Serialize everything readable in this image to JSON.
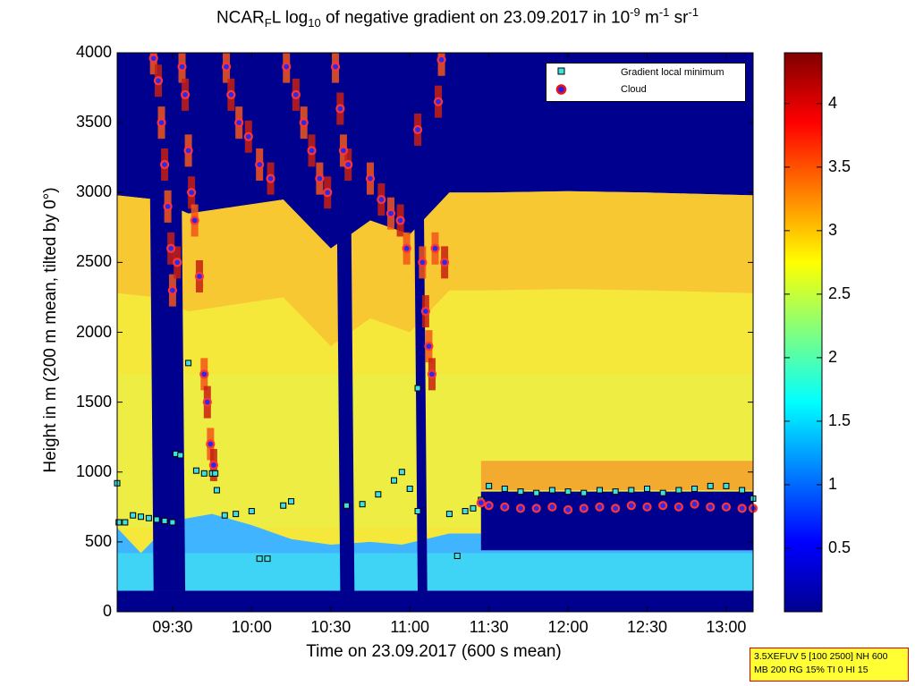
{
  "chart_data": {
    "type": "heatmap",
    "title_parts": {
      "a": "NCAR",
      "a_sub": "F",
      "b": "L log",
      "b_sub": "10",
      "c": " of negative gradient on 23.09.2017 in 10",
      "c_sup": "-9",
      "d": " m",
      "d_sup": "-1",
      "e": " sr",
      "e_sup": "-1"
    },
    "xlabel": "Time on 23.09.2017 (600 s mean)",
    "ylabel": "Height in m (200 m mean, tilted by 0°)",
    "x_ticks": [
      "09:30",
      "10:00",
      "10:30",
      "11:00",
      "11:30",
      "12:00",
      "12:30",
      "13:00"
    ],
    "x_tick_hours": [
      9.5,
      10.0,
      10.5,
      11.0,
      11.5,
      12.0,
      12.5,
      13.0
    ],
    "xlim_hours": [
      9.15,
      13.17
    ],
    "y_ticks": [
      0,
      500,
      1000,
      1500,
      2000,
      2500,
      3000,
      3500,
      4000
    ],
    "ylim": [
      0,
      4000
    ],
    "colorbar": {
      "ticks": [
        0.5,
        1,
        1.5,
        2,
        2.5,
        3,
        3.5,
        4
      ],
      "tick_labels": [
        "0.5",
        "1",
        "1.5",
        "2",
        "2.5",
        "3",
        "3.5",
        "4"
      ],
      "clim": [
        0,
        4.4
      ],
      "colormap": "jet"
    },
    "legend": {
      "placement": "top-right",
      "entries": [
        "Gradient local minimum",
        "Cloud"
      ]
    },
    "layers": {
      "surface_layer_top_m": [
        [
          9.15,
          600
        ],
        [
          9.3,
          420
        ],
        [
          9.5,
          650
        ],
        [
          9.75,
          700
        ],
        [
          10.0,
          620
        ],
        [
          10.25,
          520
        ],
        [
          10.5,
          480
        ],
        [
          10.75,
          500
        ],
        [
          10.95,
          480
        ],
        [
          11.25,
          560
        ],
        [
          11.5,
          560
        ],
        [
          11.75,
          560
        ],
        [
          12.0,
          540
        ],
        [
          12.5,
          540
        ],
        [
          13.0,
          550
        ],
        [
          13.17,
          550
        ]
      ],
      "aerosol_layer_top_m": [
        [
          9.15,
          2980
        ],
        [
          9.4,
          2950
        ],
        [
          9.6,
          2850
        ],
        [
          9.9,
          2900
        ],
        [
          10.2,
          2950
        ],
        [
          10.5,
          2600
        ],
        [
          10.75,
          2800
        ],
        [
          11.0,
          2700
        ],
        [
          11.25,
          3000
        ],
        [
          11.5,
          3000
        ],
        [
          12.0,
          3010
        ],
        [
          12.5,
          3000
        ],
        [
          13.17,
          2980
        ]
      ]
    },
    "clear_gaps_hours": [
      [
        9.35,
        9.55
      ],
      [
        10.53,
        10.62
      ],
      [
        11.02,
        11.08
      ]
    ],
    "gradient_local_minimum_m": [
      [
        9.15,
        920
      ],
      [
        9.16,
        640
      ],
      [
        9.2,
        640
      ],
      [
        9.25,
        690
      ],
      [
        9.3,
        680
      ],
      [
        9.35,
        670
      ],
      [
        9.4,
        660
      ],
      [
        9.45,
        650
      ],
      [
        9.5,
        640
      ],
      [
        9.52,
        1130
      ],
      [
        9.55,
        1120
      ],
      [
        9.6,
        1780
      ],
      [
        9.65,
        1010
      ],
      [
        9.7,
        990
      ],
      [
        9.75,
        990
      ],
      [
        9.77,
        990
      ],
      [
        9.78,
        870
      ],
      [
        9.83,
        690
      ],
      [
        9.9,
        700
      ],
      [
        10.0,
        720
      ],
      [
        10.05,
        380
      ],
      [
        10.1,
        380
      ],
      [
        10.2,
        760
      ],
      [
        10.25,
        790
      ],
      [
        10.6,
        760
      ],
      [
        10.7,
        770
      ],
      [
        10.8,
        840
      ],
      [
        10.9,
        940
      ],
      [
        10.95,
        1000
      ],
      [
        11.0,
        880
      ],
      [
        11.05,
        1600
      ],
      [
        11.05,
        720
      ],
      [
        11.25,
        700
      ],
      [
        11.3,
        400
      ],
      [
        11.35,
        720
      ],
      [
        11.4,
        740
      ],
      [
        11.45,
        800
      ],
      [
        11.5,
        900
      ],
      [
        11.6,
        880
      ],
      [
        11.7,
        860
      ],
      [
        11.8,
        850
      ],
      [
        11.9,
        870
      ],
      [
        12.0,
        860
      ],
      [
        12.1,
        850
      ],
      [
        12.2,
        870
      ],
      [
        12.3,
        860
      ],
      [
        12.4,
        870
      ],
      [
        12.5,
        880
      ],
      [
        12.6,
        850
      ],
      [
        12.7,
        870
      ],
      [
        12.8,
        880
      ],
      [
        12.9,
        900
      ],
      [
        13.0,
        900
      ],
      [
        13.1,
        870
      ],
      [
        13.17,
        810
      ]
    ],
    "cloud_m": [
      [
        9.38,
        3960
      ],
      [
        9.41,
        3800
      ],
      [
        9.43,
        3500
      ],
      [
        9.45,
        3200
      ],
      [
        9.47,
        2900
      ],
      [
        9.49,
        2600
      ],
      [
        9.5,
        2300
      ],
      [
        9.53,
        2500
      ],
      [
        9.56,
        3900
      ],
      [
        9.58,
        3700
      ],
      [
        9.6,
        3300
      ],
      [
        9.62,
        3000
      ],
      [
        9.64,
        2800
      ],
      [
        9.67,
        2400
      ],
      [
        9.7,
        1700
      ],
      [
        9.72,
        1500
      ],
      [
        9.74,
        1200
      ],
      [
        9.76,
        1050
      ],
      [
        9.84,
        3900
      ],
      [
        9.87,
        3700
      ],
      [
        9.92,
        3500
      ],
      [
        9.98,
        3400
      ],
      [
        10.05,
        3200
      ],
      [
        10.12,
        3100
      ],
      [
        10.22,
        3900
      ],
      [
        10.28,
        3700
      ],
      [
        10.33,
        3500
      ],
      [
        10.38,
        3300
      ],
      [
        10.43,
        3100
      ],
      [
        10.48,
        3000
      ],
      [
        10.53,
        3900
      ],
      [
        10.56,
        3600
      ],
      [
        10.58,
        3300
      ],
      [
        10.61,
        3200
      ],
      [
        10.75,
        3100
      ],
      [
        10.82,
        2950
      ],
      [
        10.88,
        2850
      ],
      [
        10.94,
        2800
      ],
      [
        10.98,
        2600
      ],
      [
        11.05,
        3450
      ],
      [
        11.08,
        2500
      ],
      [
        11.1,
        2150
      ],
      [
        11.12,
        1900
      ],
      [
        11.14,
        1700
      ],
      [
        11.16,
        2600
      ],
      [
        11.18,
        3650
      ],
      [
        11.2,
        3950
      ],
      [
        11.22,
        2500
      ],
      [
        11.45,
        780
      ],
      [
        11.5,
        760
      ],
      [
        11.6,
        750
      ],
      [
        11.7,
        740
      ],
      [
        11.8,
        740
      ],
      [
        11.9,
        750
      ],
      [
        12.0,
        730
      ],
      [
        12.1,
        740
      ],
      [
        12.2,
        750
      ],
      [
        12.3,
        740
      ],
      [
        12.4,
        760
      ],
      [
        12.5,
        750
      ],
      [
        12.6,
        760
      ],
      [
        12.7,
        750
      ],
      [
        12.8,
        770
      ],
      [
        12.9,
        750
      ],
      [
        13.0,
        750
      ],
      [
        13.1,
        740
      ],
      [
        13.17,
        740
      ]
    ]
  },
  "info_box": {
    "line1": "3.5XEFUV 5 [100 2500] NH 600",
    "line2": "MB 200 RG 15% TI 0 HI 15"
  }
}
